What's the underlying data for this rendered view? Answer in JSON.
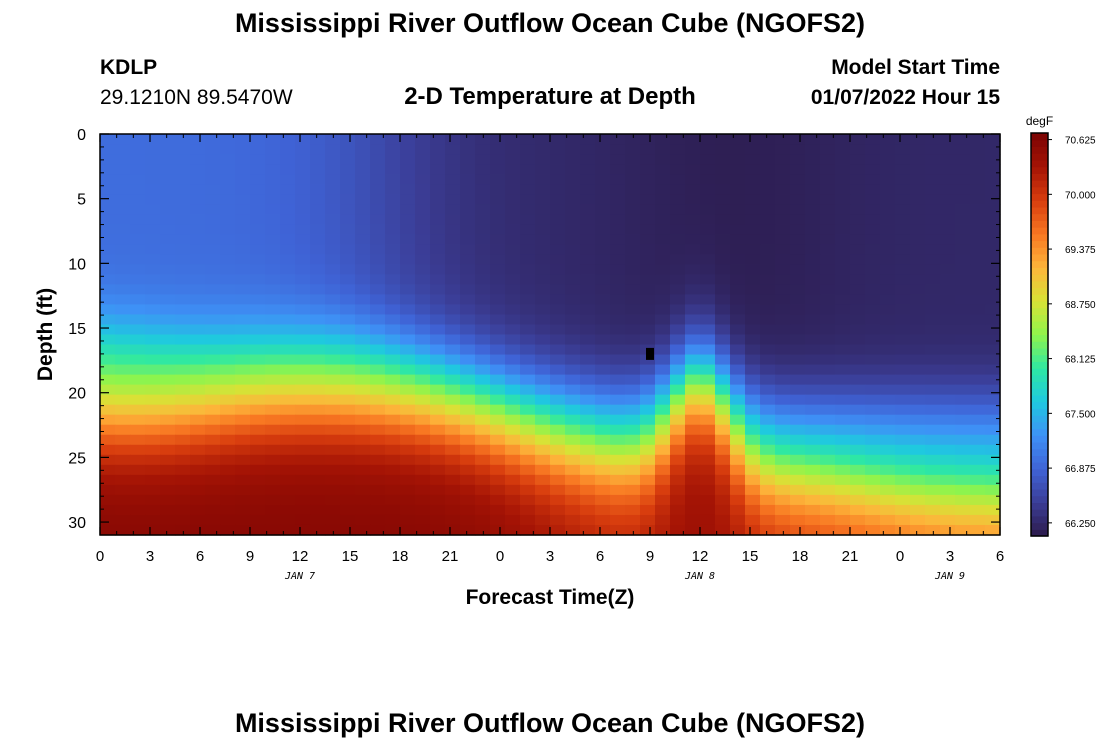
{
  "header": {
    "title": "Mississippi River Outflow Ocean Cube (NGOFS2)",
    "station_id": "KDLP",
    "station_coords": "29.1210N  89.5470W",
    "subtitle": "2-D Temperature at Depth",
    "model_start_label": "Model Start Time",
    "model_start_value": "01/07/2022 Hour 15"
  },
  "footer": {
    "title": "Mississippi River Outflow Ocean Cube (NGOFS2)"
  },
  "chart_data": {
    "type": "heatmap",
    "title": "2-D Temperature at Depth",
    "xlabel": "Forecast Time(Z)",
    "ylabel": "Depth (ft)",
    "x_hours_range": [
      0,
      54
    ],
    "x_tick_labels": [
      "0",
      "3",
      "6",
      "9",
      "12",
      "15",
      "18",
      "21",
      "0",
      "3",
      "6",
      "9",
      "12",
      "15",
      "18",
      "21",
      "0",
      "3",
      "6"
    ],
    "date_labels": [
      {
        "label": "JAN 7",
        "hour": 12
      },
      {
        "label": "JAN 8",
        "hour": 36
      },
      {
        "label": "JAN 9",
        "hour": 51
      }
    ],
    "ylim": [
      0,
      31
    ],
    "y_ticks": [
      0,
      5,
      10,
      15,
      20,
      25,
      30
    ],
    "colorbar": {
      "unit": "degF",
      "min": 66.1,
      "max": 70.7,
      "tick_values": [
        70.625,
        70.0,
        69.375,
        68.75,
        68.125,
        67.5,
        66.875,
        66.25
      ],
      "tick_labels": [
        "70.625",
        "70.000",
        "69.375",
        "68.750",
        "68.125",
        "67.500",
        "66.875",
        "66.250"
      ],
      "colors": [
        "#2c1a4a",
        "#3b3d96",
        "#3f63d6",
        "#3e91f6",
        "#1fc8e0",
        "#2ee8a3",
        "#8ff44c",
        "#d8e236",
        "#fdb53a",
        "#f87722",
        "#d83d0e",
        "#a51405",
        "#7b0303"
      ]
    },
    "annotations": [
      {
        "type": "marker",
        "hour": 33,
        "depth": 17,
        "color": "#000000"
      }
    ]
  }
}
